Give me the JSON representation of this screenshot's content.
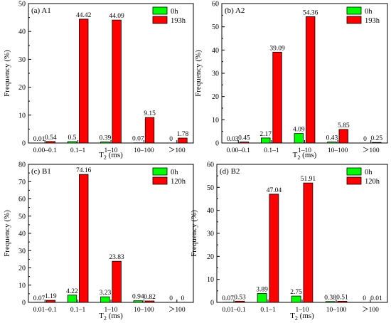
{
  "legend_swatch_colors": {
    "0h": "#00ff00",
    "end": "#ff0000"
  },
  "chart_data": [
    {
      "type": "bar",
      "panel_label": "(a) A1",
      "categories": [
        "0.00–0.1",
        "0.1–1",
        "1–10",
        "10–100",
        "＞100"
      ],
      "series": [
        {
          "name": "0h",
          "color": "#00ff00",
          "values": [
            0.01,
            0.5,
            0.39,
            0.07,
            0
          ]
        },
        {
          "name": "193h",
          "color": "#ff0000",
          "values": [
            0.54,
            44.42,
            44.09,
            9.15,
            1.78
          ]
        }
      ],
      "labels": {
        "0h": [
          "0.01",
          "0.5",
          "0.39",
          "0.07",
          "0"
        ],
        "end": [
          "0.54",
          "44.42",
          "44.09",
          "9.15",
          "1.78"
        ]
      },
      "ylim": [
        0,
        50
      ],
      "yticks": [
        0,
        10,
        20,
        30,
        40,
        50
      ],
      "ylabel": "Frequency (%)",
      "xlabel": "T2 (ms)",
      "legend": "top-right",
      "grid": false
    },
    {
      "type": "bar",
      "panel_label": "(b) A2",
      "categories": [
        "0.00–0.1",
        "0.1–1",
        "1–10",
        "10–100",
        "＞100"
      ],
      "series": [
        {
          "name": "0h",
          "color": "#00ff00",
          "values": [
            0.03,
            2.17,
            4.09,
            0.43,
            0
          ]
        },
        {
          "name": "193h",
          "color": "#ff0000",
          "values": [
            0.45,
            39.09,
            54.36,
            5.85,
            0.25
          ]
        }
      ],
      "labels": {
        "0h": [
          "0.03",
          "2.17",
          "4.09",
          "0.43",
          "0"
        ],
        "end": [
          "0.45",
          "39.09",
          "54.36",
          "5.85",
          "0.25"
        ]
      },
      "ylim": [
        0,
        60
      ],
      "yticks": [
        0,
        10,
        20,
        30,
        40,
        50,
        60
      ],
      "ylabel": "Frequency (%)",
      "xlabel": "T2 (ms)",
      "legend": "top-right",
      "grid": false
    },
    {
      "type": "bar",
      "panel_label": "(c) B1",
      "categories": [
        "0.01–0.1",
        "0.1–1",
        "1–10",
        "10–100",
        "＞100"
      ],
      "series": [
        {
          "name": "0h",
          "color": "#00ff00",
          "values": [
            0.07,
            4.22,
            3.23,
            0.94,
            0
          ]
        },
        {
          "name": "120h",
          "color": "#ff0000",
          "values": [
            1.19,
            74.16,
            23.83,
            0.82,
            0
          ]
        }
      ],
      "labels": {
        "0h": [
          "0.07",
          "4.22",
          "3.23",
          "0.94",
          "0"
        ],
        "end": [
          "1.19",
          "74.16",
          "23.83",
          "0.82",
          "0"
        ]
      },
      "ylim": [
        0,
        80
      ],
      "yticks": [
        0,
        10,
        20,
        30,
        40,
        50,
        60,
        70,
        80
      ],
      "ylabel": "Frequency (%)",
      "xlabel": "T2 (ms)",
      "legend": "top-right",
      "grid": false
    },
    {
      "type": "bar",
      "panel_label": "(d) B2",
      "categories": [
        "0.01–0.1",
        "0.1–1",
        "1–10",
        "10–100",
        "＞100"
      ],
      "series": [
        {
          "name": "0h",
          "color": "#00ff00",
          "values": [
            0.07,
            3.89,
            2.75,
            0.38,
            0
          ]
        },
        {
          "name": "120h",
          "color": "#ff0000",
          "values": [
            0.53,
            47.04,
            51.91,
            0.51,
            0.01
          ]
        }
      ],
      "labels": {
        "0h": [
          "0.07",
          "3.89",
          "2.75",
          "0.38",
          "0"
        ],
        "end": [
          "0.53",
          "47.04",
          "51.91",
          "0.51",
          "0.01"
        ]
      },
      "ylim": [
        0,
        60
      ],
      "yticks": [
        0,
        10,
        20,
        30,
        40,
        50,
        60
      ],
      "ylabel": "Frequency (%)",
      "xlabel": "T2 (ms)",
      "legend": "top-right",
      "grid": false
    }
  ]
}
